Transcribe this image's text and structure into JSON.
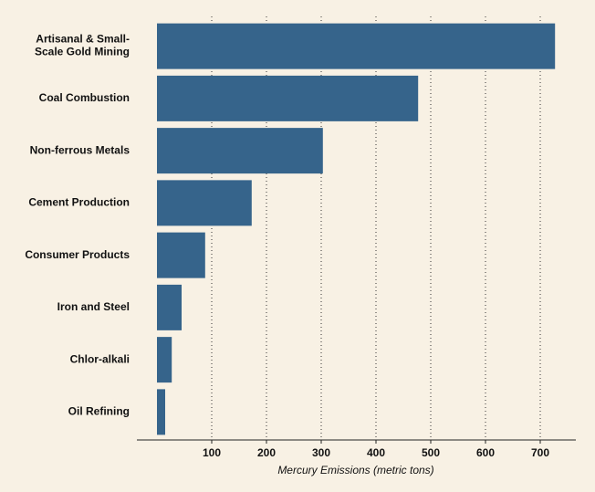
{
  "chart_data": {
    "type": "bar",
    "orientation": "horizontal",
    "x_label": "Mercury Emissions (metric tons)",
    "categories": [
      "Artisanal & Small-Scale Gold Mining",
      "Coal Combustion",
      "Non-ferrous Metals",
      "Cement Production",
      "Consumer Products",
      "Iron and Steel",
      "Chlor-alkali",
      "Oil Refining"
    ],
    "values": [
      727,
      477,
      303,
      173,
      88,
      45,
      27,
      15
    ],
    "color": "#36648b",
    "xlim": [
      0,
      760
    ],
    "xticks": [
      100,
      200,
      300,
      400,
      500,
      600,
      700
    ],
    "grid": true
  }
}
